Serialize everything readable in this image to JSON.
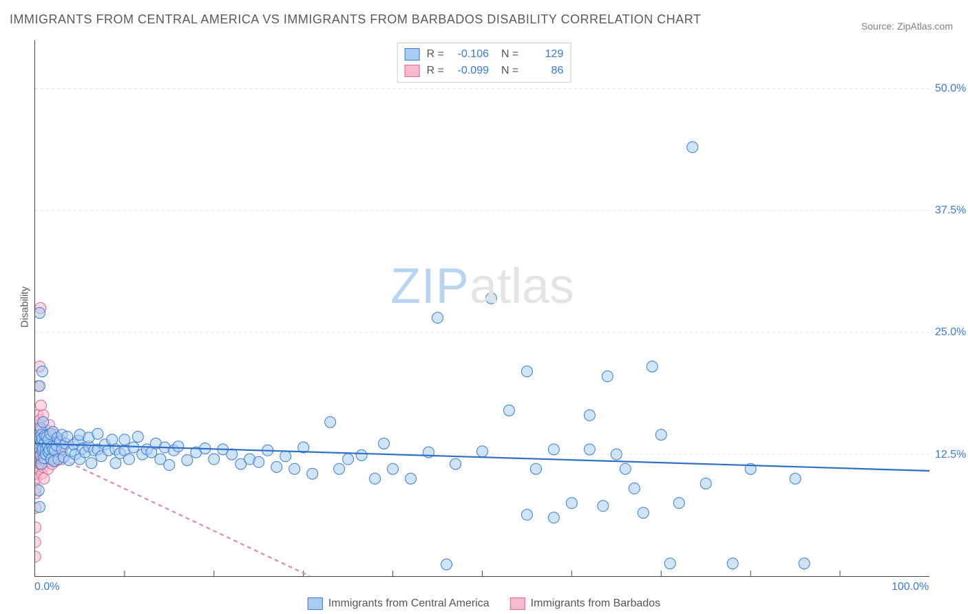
{
  "title": "IMMIGRANTS FROM CENTRAL AMERICA VS IMMIGRANTS FROM BARBADOS DISABILITY CORRELATION CHART",
  "source": "Source: ZipAtlas.com",
  "ylabel": "Disability",
  "watermark": {
    "part1": "ZIP",
    "part2": "atlas"
  },
  "chart": {
    "type": "scatter",
    "xlim": [
      0,
      100
    ],
    "ylim": [
      0,
      55
    ],
    "background_color": "#ffffff",
    "grid_color": "#dcdcdc",
    "axis_color": "#444444",
    "yticks": [
      {
        "v": 12.5,
        "label": "12.5%"
      },
      {
        "v": 25.0,
        "label": "25.0%"
      },
      {
        "v": 37.5,
        "label": "37.5%"
      },
      {
        "v": 50.0,
        "label": "50.0%"
      }
    ],
    "xticks_major": [
      {
        "v": 0,
        "label": "0.0%"
      },
      {
        "v": 100,
        "label": "100.0%"
      }
    ],
    "xticks_minor": [
      10,
      20,
      30,
      40,
      50,
      60,
      70,
      80,
      90
    ],
    "marker_radius": 8,
    "marker_stroke_width": 1,
    "trend_width": 2.2
  },
  "series": [
    {
      "name": "Immigrants from Central America",
      "fill": "#a9cdf2",
      "stroke": "#3a7bd5",
      "fill_opacity": 0.55,
      "r": -0.106,
      "n": 129,
      "trend": {
        "y_at_x0": 13.6,
        "y_at_x100": 10.8,
        "dash": "none",
        "color": "#2f6fc7"
      },
      "points": [
        [
          0.2,
          13.8
        ],
        [
          0.3,
          13.2
        ],
        [
          0.4,
          14.2
        ],
        [
          0.4,
          8.8
        ],
        [
          0.5,
          7.1
        ],
        [
          0.5,
          19.5
        ],
        [
          0.5,
          27.0
        ],
        [
          0.6,
          15.2
        ],
        [
          0.6,
          12.4
        ],
        [
          0.7,
          13.8
        ],
        [
          0.7,
          14.5
        ],
        [
          0.7,
          11.5
        ],
        [
          0.8,
          21.0
        ],
        [
          0.8,
          12.9
        ],
        [
          0.8,
          14.1
        ],
        [
          0.9,
          13.1
        ],
        [
          0.9,
          15.8
        ],
        [
          1.0,
          12.1
        ],
        [
          1.1,
          13.7
        ],
        [
          1.1,
          14.4
        ],
        [
          1.2,
          13.0
        ],
        [
          1.2,
          12.5
        ],
        [
          1.3,
          14.3
        ],
        [
          1.4,
          13.4
        ],
        [
          1.5,
          12.7
        ],
        [
          1.5,
          14.0
        ],
        [
          1.6,
          13.0
        ],
        [
          1.7,
          14.6
        ],
        [
          1.8,
          12.0
        ],
        [
          1.9,
          13.3
        ],
        [
          2.0,
          13.0
        ],
        [
          2.0,
          14.8
        ],
        [
          2.1,
          11.8
        ],
        [
          2.2,
          12.9
        ],
        [
          2.4,
          13.4
        ],
        [
          2.5,
          14.2
        ],
        [
          2.6,
          12.0
        ],
        [
          2.8,
          13.8
        ],
        [
          3.0,
          13.0
        ],
        [
          3.0,
          14.5
        ],
        [
          3.2,
          12.2
        ],
        [
          3.4,
          13.6
        ],
        [
          3.6,
          14.3
        ],
        [
          3.8,
          11.9
        ],
        [
          4.0,
          12.8
        ],
        [
          4.3,
          13.5
        ],
        [
          4.5,
          12.5
        ],
        [
          4.8,
          13.9
        ],
        [
          5.0,
          12.0
        ],
        [
          5.0,
          14.5
        ],
        [
          5.3,
          13.1
        ],
        [
          5.6,
          12.7
        ],
        [
          6.0,
          13.3
        ],
        [
          6.0,
          14.2
        ],
        [
          6.3,
          11.6
        ],
        [
          6.6,
          12.9
        ],
        [
          7.0,
          13.0
        ],
        [
          7.0,
          14.6
        ],
        [
          7.4,
          12.3
        ],
        [
          7.8,
          13.5
        ],
        [
          8.2,
          12.9
        ],
        [
          8.6,
          14.0
        ],
        [
          9.0,
          13.0
        ],
        [
          9.0,
          11.6
        ],
        [
          9.5,
          12.6
        ],
        [
          10.0,
          12.9
        ],
        [
          10.0,
          14.0
        ],
        [
          10.5,
          12.0
        ],
        [
          11.0,
          13.2
        ],
        [
          11.5,
          14.3
        ],
        [
          12.0,
          12.5
        ],
        [
          12.5,
          13.0
        ],
        [
          13.0,
          12.7
        ],
        [
          13.5,
          13.6
        ],
        [
          14.0,
          12.0
        ],
        [
          14.5,
          13.2
        ],
        [
          15.0,
          11.4
        ],
        [
          15.5,
          12.9
        ],
        [
          16.0,
          13.3
        ],
        [
          17.0,
          11.9
        ],
        [
          18.0,
          12.7
        ],
        [
          19.0,
          13.1
        ],
        [
          20.0,
          12.0
        ],
        [
          21.0,
          13.0
        ],
        [
          22.0,
          12.5
        ],
        [
          23.0,
          11.5
        ],
        [
          24.0,
          12.0
        ],
        [
          25.0,
          11.7
        ],
        [
          26.0,
          12.9
        ],
        [
          27.0,
          11.2
        ],
        [
          28.0,
          12.3
        ],
        [
          29.0,
          11.0
        ],
        [
          30.0,
          13.2
        ],
        [
          31.0,
          10.5
        ],
        [
          33.0,
          15.8
        ],
        [
          34.0,
          11.0
        ],
        [
          35.0,
          12.0
        ],
        [
          36.5,
          12.4
        ],
        [
          38.0,
          10.0
        ],
        [
          39.0,
          13.6
        ],
        [
          40.0,
          11.0
        ],
        [
          42.0,
          10.0
        ],
        [
          44.0,
          12.7
        ],
        [
          45.0,
          26.5
        ],
        [
          46.0,
          1.2
        ],
        [
          47.0,
          11.5
        ],
        [
          50.0,
          12.8
        ],
        [
          51.0,
          28.5
        ],
        [
          53.0,
          17.0
        ],
        [
          55.0,
          6.3
        ],
        [
          55.0,
          21.0
        ],
        [
          56.0,
          11.0
        ],
        [
          58.0,
          13.0
        ],
        [
          58.0,
          6.0
        ],
        [
          60.0,
          7.5
        ],
        [
          62.0,
          16.5
        ],
        [
          62.0,
          13.0
        ],
        [
          63.5,
          7.2
        ],
        [
          64.0,
          20.5
        ],
        [
          65.0,
          12.5
        ],
        [
          66.0,
          11.0
        ],
        [
          67.0,
          9.0
        ],
        [
          68.0,
          6.5
        ],
        [
          69.0,
          21.5
        ],
        [
          70.0,
          14.5
        ],
        [
          71.0,
          1.3
        ],
        [
          72.0,
          7.5
        ],
        [
          73.5,
          44.0
        ],
        [
          75.0,
          9.5
        ],
        [
          78.0,
          1.3
        ],
        [
          80.0,
          11.0
        ],
        [
          85.0,
          10.0
        ],
        [
          86.0,
          1.3
        ]
      ]
    },
    {
      "name": "Immigrants from Barbados",
      "fill": "#f6b9ce",
      "stroke": "#e06a93",
      "fill_opacity": 0.55,
      "r": -0.099,
      "n": 86,
      "trend": {
        "y_at_x0": 13.3,
        "y_at_x100": -30.0,
        "dash": "6 5",
        "color": "#e38aa8"
      },
      "points": [
        [
          0.02,
          2.0
        ],
        [
          0.02,
          3.5
        ],
        [
          0.05,
          5.0
        ],
        [
          0.05,
          7.0
        ],
        [
          0.06,
          8.5
        ],
        [
          0.07,
          9.0
        ],
        [
          0.07,
          10.0
        ],
        [
          0.08,
          10.5
        ],
        [
          0.08,
          11.2
        ],
        [
          0.09,
          11.8
        ],
        [
          0.1,
          12.0
        ],
        [
          0.1,
          12.4
        ],
        [
          0.11,
          12.6
        ],
        [
          0.12,
          12.8
        ],
        [
          0.12,
          13.0
        ],
        [
          0.14,
          13.2
        ],
        [
          0.14,
          13.4
        ],
        [
          0.15,
          13.5
        ],
        [
          0.16,
          13.6
        ],
        [
          0.17,
          13.9
        ],
        [
          0.18,
          13.1
        ],
        [
          0.19,
          14.3
        ],
        [
          0.2,
          12.5
        ],
        [
          0.2,
          15.2
        ],
        [
          0.22,
          13.6
        ],
        [
          0.24,
          12.9
        ],
        [
          0.24,
          14.4
        ],
        [
          0.26,
          11.9
        ],
        [
          0.28,
          16.5
        ],
        [
          0.3,
          12.6
        ],
        [
          0.3,
          13.9
        ],
        [
          0.32,
          13.2
        ],
        [
          0.34,
          19.5
        ],
        [
          0.36,
          12.4
        ],
        [
          0.38,
          14.6
        ],
        [
          0.4,
          13.0
        ],
        [
          0.42,
          11.0
        ],
        [
          0.44,
          15.5
        ],
        [
          0.46,
          12.2
        ],
        [
          0.48,
          14.0
        ],
        [
          0.5,
          13.0
        ],
        [
          0.5,
          21.5
        ],
        [
          0.52,
          12.7
        ],
        [
          0.55,
          16.0
        ],
        [
          0.58,
          11.5
        ],
        [
          0.6,
          13.4
        ],
        [
          0.6,
          27.5
        ],
        [
          0.62,
          12.9
        ],
        [
          0.65,
          17.5
        ],
        [
          0.68,
          14.1
        ],
        [
          0.7,
          12.0
        ],
        [
          0.72,
          15.0
        ],
        [
          0.75,
          10.5
        ],
        [
          0.78,
          13.5
        ],
        [
          0.8,
          12.0
        ],
        [
          0.83,
          14.2
        ],
        [
          0.85,
          11.2
        ],
        [
          0.9,
          13.0
        ],
        [
          0.92,
          16.5
        ],
        [
          0.95,
          12.3
        ],
        [
          1.0,
          13.9
        ],
        [
          1.0,
          10.0
        ],
        [
          1.05,
          14.5
        ],
        [
          1.1,
          12.5
        ],
        [
          1.15,
          13.8
        ],
        [
          1.2,
          11.7
        ],
        [
          1.25,
          15.0
        ],
        [
          1.3,
          12.0
        ],
        [
          1.35,
          13.3
        ],
        [
          1.4,
          14.0
        ],
        [
          1.45,
          11.0
        ],
        [
          1.5,
          12.8
        ],
        [
          1.55,
          13.5
        ],
        [
          1.6,
          15.5
        ],
        [
          1.7,
          12.0
        ],
        [
          1.8,
          14.3
        ],
        [
          1.9,
          11.5
        ],
        [
          2.0,
          13.0
        ],
        [
          2.1,
          12.2
        ],
        [
          2.2,
          14.5
        ],
        [
          2.3,
          11.8
        ],
        [
          2.4,
          13.2
        ],
        [
          2.6,
          12.5
        ],
        [
          2.8,
          14.0
        ],
        [
          3.0,
          12.0
        ],
        [
          3.2,
          13.4
        ]
      ]
    }
  ],
  "legend_top": {
    "r_label": "R =",
    "n_label": "N ="
  },
  "legend_bottom": [
    {
      "series_index": 0
    },
    {
      "series_index": 1
    }
  ]
}
